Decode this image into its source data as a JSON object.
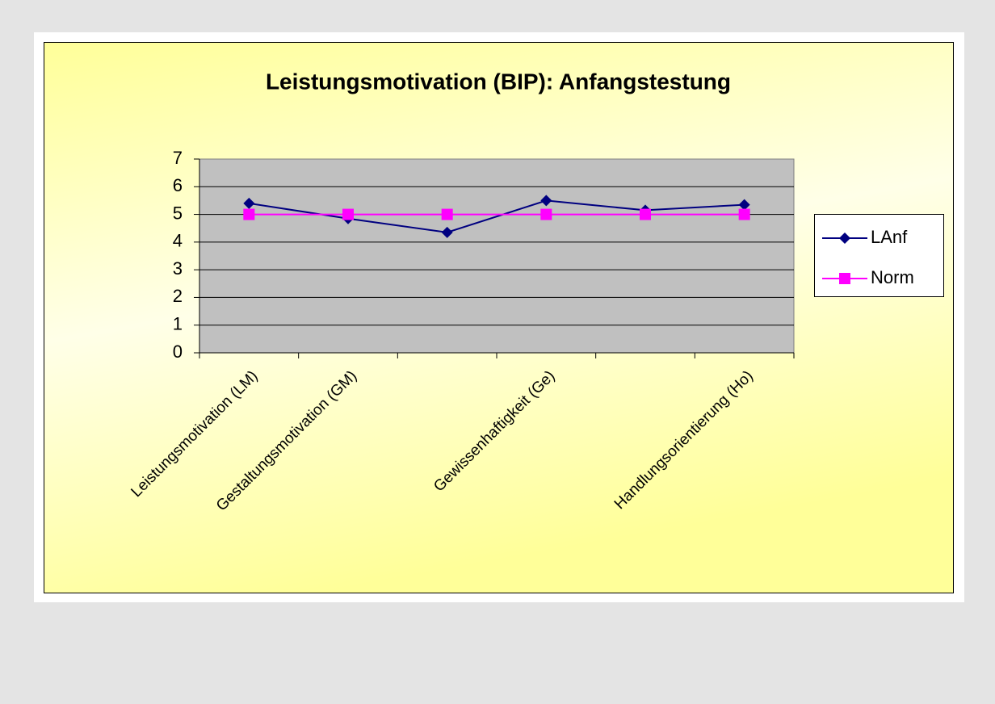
{
  "chart_data": {
    "type": "line",
    "title": "Leistungsmotivation (BIP): Anfangstestung",
    "categories": [
      "Leistungsmotivation (LM)",
      "Gestaltungsmotivation (GM)",
      null,
      "Gewissenhaftigkeit (Ge)",
      null,
      "Handlungsorientierung (Ho)"
    ],
    "series": [
      {
        "name": "LAnf",
        "color": "#000080",
        "marker": "diamond",
        "values": [
          5.4,
          4.85,
          4.35,
          5.5,
          5.15,
          5.35
        ]
      },
      {
        "name": "Norm",
        "color": "#ff00ff",
        "marker": "square",
        "values": [
          5,
          5,
          5,
          5,
          5,
          5
        ]
      }
    ],
    "ylim": [
      0,
      7
    ],
    "yticks": [
      0,
      1,
      2,
      3,
      4,
      5,
      6,
      7
    ],
    "grid": true,
    "legend": "right"
  }
}
